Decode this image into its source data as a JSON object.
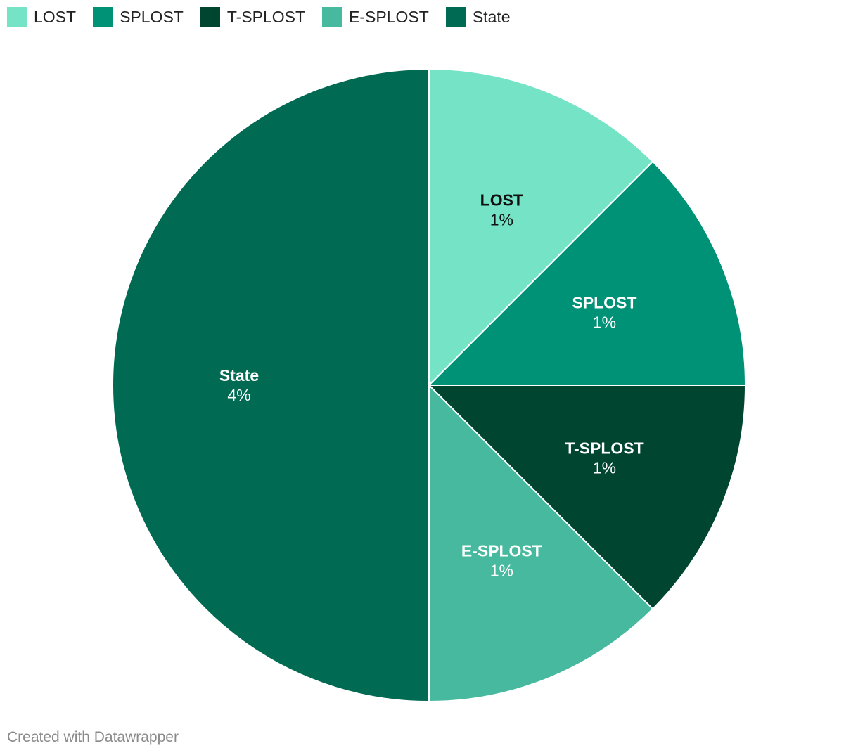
{
  "legend": {
    "items": [
      {
        "label": "LOST",
        "color": "#74e3c6"
      },
      {
        "label": "SPLOST",
        "color": "#009277"
      },
      {
        "label": "T-SPLOST",
        "color": "#004530"
      },
      {
        "label": "E-SPLOST",
        "color": "#46b99e"
      },
      {
        "label": "State",
        "color": "#006a52"
      }
    ]
  },
  "chart_data": {
    "type": "pie",
    "categories": [
      "LOST",
      "SPLOST",
      "T-SPLOST",
      "E-SPLOST",
      "State"
    ],
    "values": [
      1,
      1,
      1,
      1,
      4
    ],
    "value_labels": [
      "1%",
      "1%",
      "1%",
      "1%",
      "4%"
    ],
    "unit": "%",
    "colors": [
      "#74e3c6",
      "#009277",
      "#004530",
      "#46b99e",
      "#006a52"
    ],
    "label_text_colors": [
      "#111111",
      "#ffffff",
      "#ffffff",
      "#ffffff",
      "#ffffff"
    ],
    "start": "top, clockwise",
    "legend_position": "top-left"
  },
  "footer": {
    "credit": "Created with Datawrapper"
  }
}
